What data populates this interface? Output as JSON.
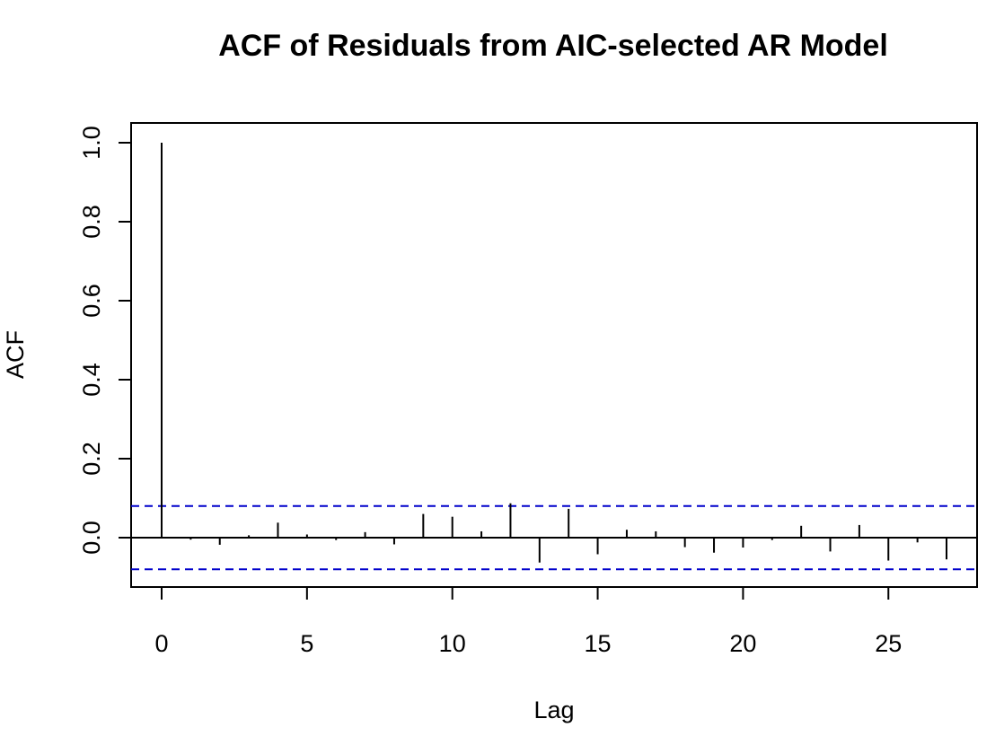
{
  "chart_data": {
    "type": "bar",
    "title": "ACF of Residuals from AIC-selected AR Model",
    "xlabel": "Lag",
    "ylabel": "ACF",
    "xlim": [
      -1.05,
      28.05
    ],
    "ylim": [
      -0.125,
      1.05
    ],
    "x_ticks": [
      0,
      5,
      10,
      15,
      20,
      25
    ],
    "x_tick_labels": [
      "0",
      "5",
      "10",
      "15",
      "20",
      "25"
    ],
    "y_ticks": [
      0.0,
      0.2,
      0.4,
      0.6,
      0.8,
      1.0
    ],
    "y_tick_labels": [
      "0.0",
      "0.2",
      "0.4",
      "0.6",
      "0.8",
      "1.0"
    ],
    "lags": [
      0,
      1,
      2,
      3,
      4,
      5,
      6,
      7,
      8,
      9,
      10,
      11,
      12,
      13,
      14,
      15,
      16,
      17,
      18,
      19,
      20,
      21,
      22,
      23,
      24,
      25,
      26,
      27
    ],
    "values": [
      1.0,
      -0.005,
      -0.018,
      0.006,
      0.038,
      0.008,
      -0.006,
      0.014,
      -0.017,
      0.06,
      0.053,
      0.016,
      0.087,
      -0.063,
      0.073,
      -0.042,
      0.02,
      0.016,
      -0.024,
      -0.038,
      -0.025,
      -0.006,
      0.03,
      -0.035,
      0.032,
      -0.058,
      -0.012,
      -0.055
    ],
    "confidence_bound": 0.08,
    "confidence_line_color": "#0000cc",
    "grid": false
  }
}
